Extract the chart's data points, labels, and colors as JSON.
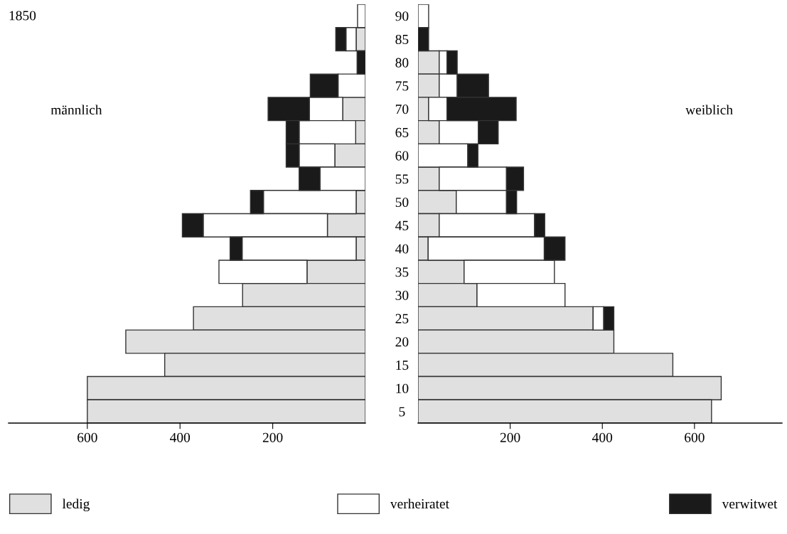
{
  "chart_data": [
    {
      "type": "bar",
      "orientation": "horizontal",
      "stacked": true,
      "title": "1850",
      "annotations": [
        "männlich"
      ],
      "categories": [
        "90",
        "85",
        "80",
        "75",
        "70",
        "65",
        "60",
        "55",
        "50",
        "45",
        "40",
        "35",
        "30",
        "25",
        "20",
        "15",
        "10",
        "5"
      ],
      "series": [
        {
          "name": "ledig",
          "color": "#e0e0e0",
          "values": [
            0,
            20,
            0,
            0,
            49,
            21,
            66,
            0,
            20,
            82,
            20,
            126,
            265,
            371,
            517,
            433,
            600,
            600
          ]
        },
        {
          "name": "verheiratet",
          "color": "#ffffff",
          "values": [
            17,
            22,
            0,
            59,
            72,
            122,
            77,
            98,
            200,
            268,
            246,
            190,
            0,
            0,
            0,
            0,
            0,
            0
          ]
        },
        {
          "name": "verwitwet",
          "color": "#1a1a1a",
          "values": [
            0,
            22,
            18,
            60,
            89,
            28,
            28,
            45,
            28,
            45,
            26,
            0,
            0,
            0,
            0,
            0,
            0,
            0
          ]
        }
      ],
      "xlim": [
        770,
        0
      ],
      "xticks": [
        600,
        400,
        200
      ],
      "legend": "bottom"
    },
    {
      "type": "bar",
      "orientation": "horizontal",
      "stacked": true,
      "annotations": [
        "weiblich"
      ],
      "tick_labels": "x",
      "categories": [
        "90",
        "85",
        "80",
        "75",
        "70",
        "65",
        "60",
        "55",
        "50",
        "45",
        "40",
        "35",
        "30",
        "25",
        "20",
        "15",
        "10",
        "5"
      ],
      "series": [
        {
          "color": "#e0e0e0",
          "values": [
            0,
            0,
            46,
            46,
            23,
            46,
            0,
            46,
            83,
            46,
            22,
            100,
            128,
            380,
            425,
            553,
            658,
            637
          ]
        },
        {
          "color": "#ffffff",
          "values": [
            23,
            0,
            17,
            39,
            40,
            85,
            108,
            146,
            109,
            207,
            252,
            196,
            191,
            23,
            0,
            0,
            0,
            0
          ]
        },
        {
          "color": "#1a1a1a",
          "values": [
            0,
            23,
            22,
            68,
            150,
            43,
            22,
            37,
            22,
            22,
            45,
            0,
            0,
            22,
            0,
            0,
            0,
            0
          ]
        }
      ],
      "xlim": [
        0,
        790
      ],
      "xticks": [
        200,
        400,
        600
      ]
    }
  ]
}
